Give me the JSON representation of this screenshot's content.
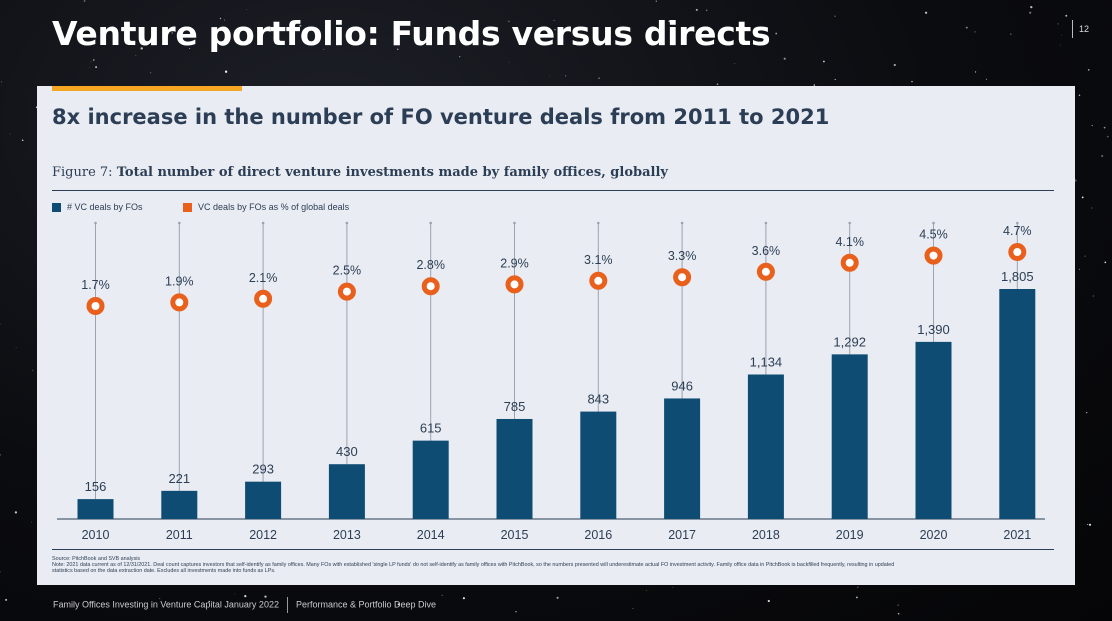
{
  "slide": {
    "title": "Venture portfolio: Funds versus directs",
    "page_number": "12",
    "headline": "8x increase in the number of FO venture deals from 2011 to 2021",
    "figure_label": "Figure 7:",
    "figure_title": "Total number of direct venture investments made by family offices, globally",
    "source_line1": "Source: PitchBook and SVB analysis",
    "source_line2": "Note: 2021 data current as of 12/31/2021. Deal count captures investors that self-identify as family offices. Many FOs with established 'single LP funds' do not self-identify as family offices with PitchBook, so the numbers presented will underestimate actual FO investment activity. Family office data in PitchBook is backfilled frequently, resulting in updated",
    "source_line3": "statistics based on the data extraction date. Excludes all investments made into funds as LPs.",
    "footer_left": "Family Offices Investing in Venture Capital January 2022",
    "footer_right": "Performance & Portfolio Deep Dive"
  },
  "colors": {
    "bar": "#0e4c73",
    "dot": "#e8601c",
    "accent": "#f5a623",
    "text": "#2c3e55"
  },
  "chart_data": {
    "type": "bar",
    "title": "Total number of direct venture investments made by family offices, globally",
    "categories": [
      "2010",
      "2011",
      "2012",
      "2013",
      "2014",
      "2015",
      "2016",
      "2017",
      "2018",
      "2019",
      "2020",
      "2021"
    ],
    "series": [
      {
        "name": "# VC deals by FOs",
        "type": "bar",
        "values": [
          156,
          221,
          293,
          430,
          615,
          785,
          843,
          946,
          1134,
          1292,
          1390,
          1805
        ],
        "labels": [
          "156",
          "221",
          "293",
          "430",
          "615",
          "785",
          "843",
          "946",
          "1,134",
          "1,292",
          "1,390",
          "1,805"
        ]
      },
      {
        "name": "VC deals by FOs as % of global deals",
        "type": "scatter",
        "values": [
          1.7,
          1.9,
          2.1,
          2.5,
          2.8,
          2.9,
          3.1,
          3.3,
          3.6,
          4.1,
          4.5,
          4.7
        ],
        "labels": [
          "1.7%",
          "1.9%",
          "2.1%",
          "2.5%",
          "2.8%",
          "2.9%",
          "3.1%",
          "3.3%",
          "3.6%",
          "4.1%",
          "4.5%",
          "4.7%"
        ]
      }
    ],
    "ylim_bars": [
      0,
      1850
    ],
    "ylim_pct": [
      0,
      6
    ],
    "grid": false,
    "legend_position": "top-left"
  }
}
